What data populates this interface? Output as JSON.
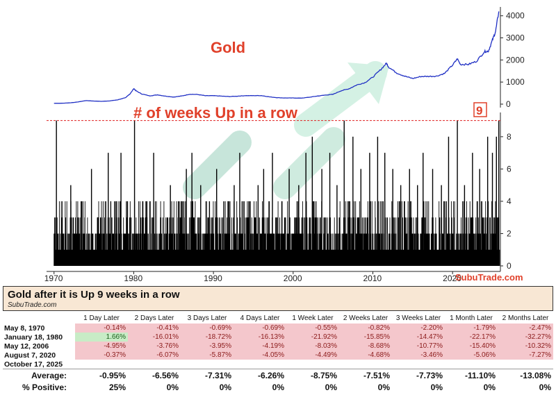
{
  "chart_data": [
    {
      "type": "line",
      "title": "Gold",
      "ylim": [
        0,
        4400
      ],
      "yticks": [
        0,
        1000,
        2000,
        3000,
        4000
      ],
      "color": "#1f2fc4",
      "x": [
        1970,
        1971,
        1972,
        1973,
        1974,
        1975,
        1976,
        1977,
        1978,
        1979,
        1979.5,
        1980,
        1980.3,
        1981,
        1982,
        1983,
        1984,
        1985,
        1986,
        1987,
        1988,
        1989,
        1990,
        1991,
        1992,
        1993,
        1994,
        1995,
        1996,
        1997,
        1998,
        1999,
        2000,
        2001,
        2002,
        2003,
        2004,
        2005,
        2006,
        2007,
        2008,
        2009,
        2010,
        2011,
        2011.7,
        2012,
        2013,
        2014,
        2015,
        2016,
        2017,
        2018,
        2019,
        2020,
        2020.6,
        2021,
        2022,
        2023,
        2024,
        2024.5,
        2025,
        2025.4,
        2025.8
      ],
      "y": [
        36,
        41,
        58,
        98,
        160,
        140,
        125,
        148,
        193,
        300,
        450,
        700,
        600,
        460,
        375,
        420,
        360,
        320,
        368,
        447,
        437,
        381,
        383,
        362,
        343,
        360,
        384,
        384,
        387,
        331,
        294,
        279,
        279,
        272,
        310,
        363,
        409,
        444,
        604,
        695,
        872,
        972,
        1225,
        1570,
        1850,
        1669,
        1411,
        1266,
        1160,
        1250,
        1257,
        1268,
        1392,
        1770,
        2050,
        1798,
        1800,
        1940,
        2380,
        2400,
        2900,
        3300,
        4200
      ]
    },
    {
      "type": "bar",
      "title": "# of weeks Up in a row",
      "xlim": [
        1969.5,
        2026
      ],
      "ylim": [
        0,
        9.5
      ],
      "yticks": [
        0,
        2,
        4,
        6,
        8
      ],
      "xticks": [
        1970,
        1980,
        1990,
        2000,
        2010,
        2020
      ],
      "threshold": 9,
      "threshold_label": "9",
      "peaks": [
        {
          "x": 1970.3,
          "y": 9
        },
        {
          "x": 1972.1,
          "y": 5
        },
        {
          "x": 1973.4,
          "y": 4
        },
        {
          "x": 1974.7,
          "y": 6
        },
        {
          "x": 1975.5,
          "y": 3
        },
        {
          "x": 1976.8,
          "y": 7
        },
        {
          "x": 1977.6,
          "y": 4
        },
        {
          "x": 1978.4,
          "y": 7
        },
        {
          "x": 1979.2,
          "y": 4
        },
        {
          "x": 1980.1,
          "y": 9
        },
        {
          "x": 1981.2,
          "y": 3
        },
        {
          "x": 1982.5,
          "y": 7
        },
        {
          "x": 1983.4,
          "y": 3
        },
        {
          "x": 1984.6,
          "y": 5
        },
        {
          "x": 1985.7,
          "y": 4
        },
        {
          "x": 1986.6,
          "y": 6
        },
        {
          "x": 1987.3,
          "y": 7
        },
        {
          "x": 1988.4,
          "y": 5
        },
        {
          "x": 1989.5,
          "y": 4
        },
        {
          "x": 1990.4,
          "y": 6
        },
        {
          "x": 1991.3,
          "y": 4
        },
        {
          "x": 1992.6,
          "y": 5
        },
        {
          "x": 1993.3,
          "y": 7
        },
        {
          "x": 1994.5,
          "y": 4
        },
        {
          "x": 1995.6,
          "y": 5
        },
        {
          "x": 1996.3,
          "y": 6
        },
        {
          "x": 1997.4,
          "y": 7
        },
        {
          "x": 1998.6,
          "y": 4
        },
        {
          "x": 1999.5,
          "y": 6
        },
        {
          "x": 2000.7,
          "y": 5
        },
        {
          "x": 2001.6,
          "y": 7
        },
        {
          "x": 2002.4,
          "y": 8
        },
        {
          "x": 2003.6,
          "y": 6
        },
        {
          "x": 2004.6,
          "y": 7
        },
        {
          "x": 2005.5,
          "y": 5
        },
        {
          "x": 2006.4,
          "y": 9
        },
        {
          "x": 2007.5,
          "y": 8
        },
        {
          "x": 2008.5,
          "y": 6
        },
        {
          "x": 2009.6,
          "y": 7
        },
        {
          "x": 2010.6,
          "y": 8
        },
        {
          "x": 2011.5,
          "y": 7
        },
        {
          "x": 2012.5,
          "y": 6
        },
        {
          "x": 2013.5,
          "y": 5
        },
        {
          "x": 2014.6,
          "y": 6
        },
        {
          "x": 2015.6,
          "y": 5
        },
        {
          "x": 2016.3,
          "y": 7
        },
        {
          "x": 2017.5,
          "y": 6
        },
        {
          "x": 2018.6,
          "y": 5
        },
        {
          "x": 2019.5,
          "y": 8
        },
        {
          "x": 2020.6,
          "y": 9
        },
        {
          "x": 2021.5,
          "y": 5
        },
        {
          "x": 2022.5,
          "y": 7
        },
        {
          "x": 2023.4,
          "y": 6
        },
        {
          "x": 2024.4,
          "y": 8
        },
        {
          "x": 2025.0,
          "y": 7
        },
        {
          "x": 2025.5,
          "y": 8
        },
        {
          "x": 2025.8,
          "y": 9
        }
      ],
      "color": "#000000",
      "threshold_color": "#e02020"
    }
  ],
  "watermark": "SubuTrade.com",
  "table": {
    "title": "Gold after it is Up 9 weeks in a row",
    "source": "SubuTrade.com",
    "columns": [
      "1 Day Later",
      "2 Days Later",
      "3 Days Later",
      "4 Days Later",
      "1 Week Later",
      "2 Weeks Later",
      "3 Weeks Later",
      "1 Month Later",
      "2 Months Later"
    ],
    "rows": [
      {
        "date": "May 8, 1970",
        "values": [
          "-0.14%",
          "-0.41%",
          "-0.69%",
          "-0.69%",
          "-0.55%",
          "-0.82%",
          "-2.20%",
          "-1.79%",
          "-2.47%"
        ]
      },
      {
        "date": "January 18, 1980",
        "values": [
          "1.66%",
          "-16.01%",
          "-18.72%",
          "-16.13%",
          "-21.92%",
          "-15.85%",
          "-14.47%",
          "-22.17%",
          "-32.27%"
        ]
      },
      {
        "date": "May 12, 2006",
        "values": [
          "-4.95%",
          "-3.76%",
          "-3.95%",
          "-4.19%",
          "-8.03%",
          "-8.68%",
          "-10.77%",
          "-15.40%",
          "-10.32%"
        ]
      },
      {
        "date": "August 7, 2020",
        "values": [
          "-0.37%",
          "-6.07%",
          "-5.87%",
          "-4.05%",
          "-4.49%",
          "-4.68%",
          "-3.46%",
          "-5.06%",
          "-7.27%"
        ]
      },
      {
        "date": "October 17, 2025",
        "values": [
          "",
          "",
          "",
          "",
          "",
          "",
          "",
          "",
          ""
        ]
      }
    ],
    "average_label": "Average:",
    "average": [
      "-0.95%",
      "-6.56%",
      "-7.31%",
      "-6.26%",
      "-8.75%",
      "-7.51%",
      "-7.73%",
      "-11.10%",
      "-13.08%"
    ],
    "positive_label": "% Positive:",
    "positive": [
      "25%",
      "0%",
      "0%",
      "0%",
      "0%",
      "0%",
      "0%",
      "0%",
      "0%"
    ]
  }
}
